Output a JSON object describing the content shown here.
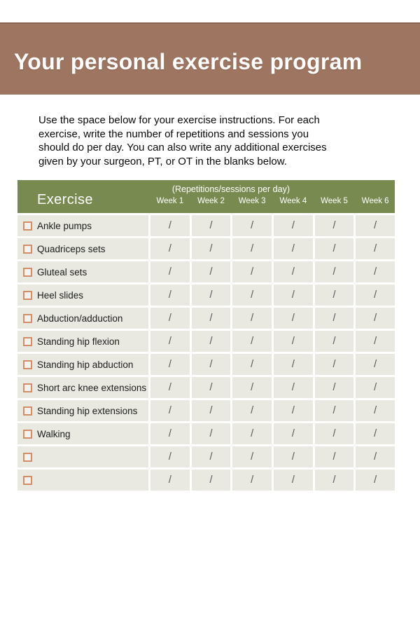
{
  "banner": {
    "title": "Your personal exercise program",
    "bg_color": "#9e7561",
    "top_line_color": "#8a6452",
    "text_color": "#ffffff"
  },
  "intro": {
    "lines": [
      "Use the space below for your exercise instructions. For each",
      "exercise, write the number of repetitions and sessions you",
      "should do per day. You can also write any additional exercises",
      "given by your surgeon, PT, or OT in the blanks below."
    ]
  },
  "table": {
    "header": {
      "exercise_label": "Exercise",
      "caption": "(Repetitions/sessions per day)",
      "weeks": [
        "Week 1",
        "Week 2",
        "Week 3",
        "Week 4",
        "Week 5",
        "Week 6"
      ],
      "bg_color": "#788a50",
      "text_color": "#ffffff"
    },
    "slash": "/",
    "row_bg_color": "#e9e9e2",
    "checkbox_border_color": "#d28e68",
    "slash_color": "#57575a",
    "rows": [
      {
        "label": "Ankle pumps",
        "cells": [
          "/",
          "/",
          "/",
          "/",
          "/",
          "/"
        ]
      },
      {
        "label": "Quadriceps sets",
        "cells": [
          "/",
          "/",
          "/",
          "/",
          "/",
          "/"
        ]
      },
      {
        "label": "Gluteal sets",
        "cells": [
          "/",
          "/",
          "/",
          "/",
          "/",
          "/"
        ]
      },
      {
        "label": "Heel slides",
        "cells": [
          "/",
          "/",
          "/",
          "/",
          "/",
          "/"
        ]
      },
      {
        "label": "Abduction/adduction",
        "cells": [
          "/",
          "/",
          "/",
          "/",
          "/",
          "/"
        ]
      },
      {
        "label": "Standing hip flexion",
        "cells": [
          "/",
          "/",
          "/",
          "/",
          "/",
          "/"
        ]
      },
      {
        "label": "Standing hip abduction",
        "cells": [
          "/",
          "/",
          "/",
          "/",
          "/",
          "/"
        ]
      },
      {
        "label": "Short arc knee extensions",
        "cells": [
          "/",
          "/",
          "/",
          "/",
          "/",
          "/"
        ]
      },
      {
        "label": "Standing hip extensions",
        "cells": [
          "/",
          "/",
          "/",
          "/",
          "/",
          "/"
        ]
      },
      {
        "label": "Walking",
        "cells": [
          "/",
          "/",
          "/",
          "/",
          "/",
          "/"
        ]
      },
      {
        "label": "",
        "cells": [
          "/",
          "/",
          "/",
          "/",
          "/",
          "/"
        ]
      },
      {
        "label": "",
        "cells": [
          "/",
          "/",
          "/",
          "/",
          "/",
          "/"
        ]
      }
    ]
  }
}
